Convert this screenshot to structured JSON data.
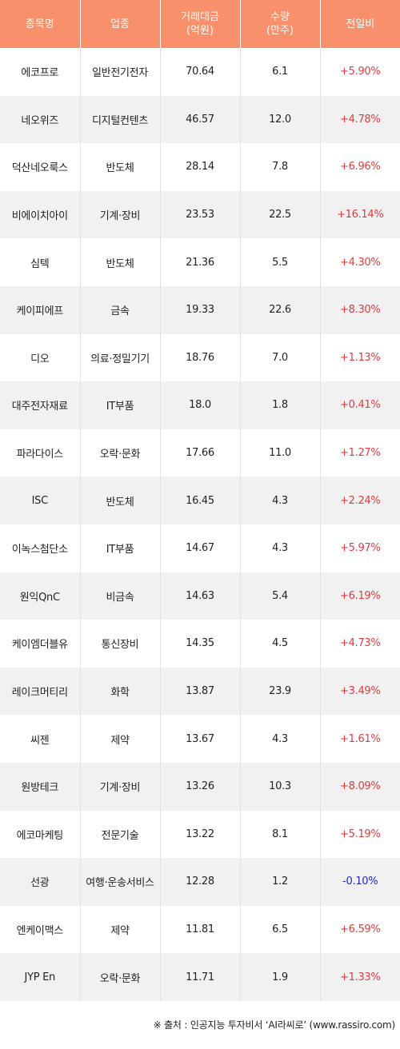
{
  "table": {
    "headers": [
      "종목명",
      "업종",
      "거래대금\n(억원)",
      "수량\n(만주)",
      "전일비"
    ],
    "rows": [
      {
        "name": "에코프로",
        "sector": "일반전기전자",
        "amount": "70.64",
        "volume": "6.1",
        "change": "+5.90%"
      },
      {
        "name": "네오위즈",
        "sector": "디지털컨텐츠",
        "amount": "46.57",
        "volume": "12.0",
        "change": "+4.78%"
      },
      {
        "name": "덕산네오룩스",
        "sector": "반도체",
        "amount": "28.14",
        "volume": "7.8",
        "change": "+6.96%"
      },
      {
        "name": "비에이치아이",
        "sector": "기계·장비",
        "amount": "23.53",
        "volume": "22.5",
        "change": "+16.14%"
      },
      {
        "name": "심텍",
        "sector": "반도체",
        "amount": "21.36",
        "volume": "5.5",
        "change": "+4.30%"
      },
      {
        "name": "케이피에프",
        "sector": "금속",
        "amount": "19.33",
        "volume": "22.6",
        "change": "+8.30%"
      },
      {
        "name": "디오",
        "sector": "의료·정밀기기",
        "amount": "18.76",
        "volume": "7.0",
        "change": "+1.13%"
      },
      {
        "name": "대주전자재료",
        "sector": "IT부품",
        "amount": "18.0",
        "volume": "1.8",
        "change": "+0.41%"
      },
      {
        "name": "파라다이스",
        "sector": "오락·문화",
        "amount": "17.66",
        "volume": "11.0",
        "change": "+1.27%"
      },
      {
        "name": "ISC",
        "sector": "반도체",
        "amount": "16.45",
        "volume": "4.3",
        "change": "+2.24%"
      },
      {
        "name": "이녹스첨단소",
        "sector": "IT부품",
        "amount": "14.67",
        "volume": "4.3",
        "change": "+5.97%"
      },
      {
        "name": "원익QnC",
        "sector": "비금속",
        "amount": "14.63",
        "volume": "5.4",
        "change": "+6.19%"
      },
      {
        "name": "케이엠더블유",
        "sector": "통신장비",
        "amount": "14.35",
        "volume": "4.5",
        "change": "+4.73%"
      },
      {
        "name": "레이크머티리",
        "sector": "화학",
        "amount": "13.87",
        "volume": "23.9",
        "change": "+3.49%"
      },
      {
        "name": "씨젠",
        "sector": "제약",
        "amount": "13.67",
        "volume": "4.3",
        "change": "+1.61%"
      },
      {
        "name": "원방테크",
        "sector": "기계·장비",
        "amount": "13.26",
        "volume": "10.3",
        "change": "+8.09%"
      },
      {
        "name": "에코마케팅",
        "sector": "전문기술",
        "amount": "13.22",
        "volume": "8.1",
        "change": "+5.19%"
      },
      {
        "name": "선광",
        "sector": "여행·운송서비스",
        "amount": "12.28",
        "volume": "1.2",
        "change": "-0.10%"
      },
      {
        "name": "엔케이맥스",
        "sector": "제약",
        "amount": "11.81",
        "volume": "6.5",
        "change": "+6.59%"
      },
      {
        "name": "JYP En",
        "sector": "오락·문화",
        "amount": "11.71",
        "volume": "1.9",
        "change": "+1.33%"
      }
    ]
  },
  "footer": {
    "source": "※ 출처 : 인공지능 투자비서 ‘AI라씨로’ (www.rassiro.com)"
  },
  "colors": {
    "header_bg": "#f7906b",
    "up": "#e8383d",
    "down": "#2222cc",
    "stripe": "#f1f1f1"
  }
}
